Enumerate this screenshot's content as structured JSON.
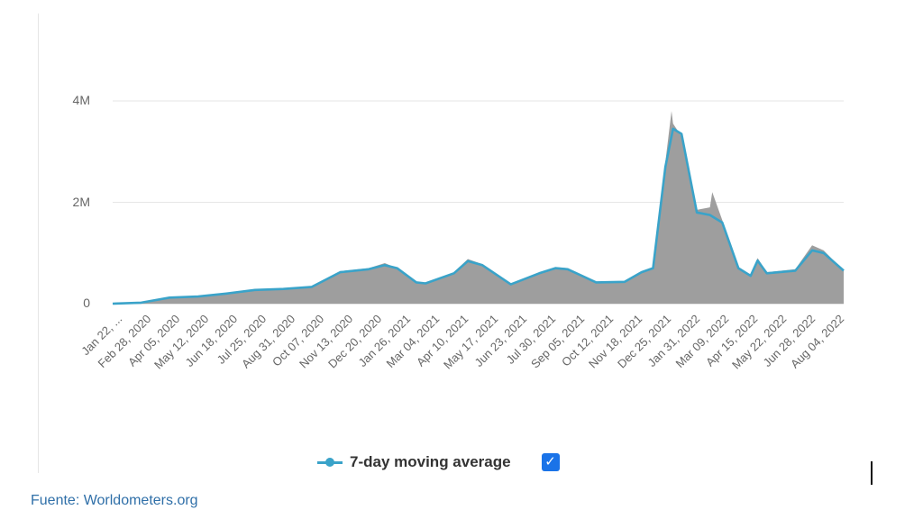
{
  "chart_data": {
    "type": "area",
    "title": "",
    "xlabel": "",
    "ylabel": "",
    "ylim": [
      0,
      4000000
    ],
    "yticks": [
      {
        "value": 0,
        "label": "0"
      },
      {
        "value": 2000000,
        "label": "2M"
      },
      {
        "value": 4000000,
        "label": "4M"
      }
    ],
    "x_tick_labels": [
      "Jan 22, ...",
      "Feb 28, 2020",
      "Apr 05, 2020",
      "May 12, 2020",
      "Jun 18, 2020",
      "Jul 25, 2020",
      "Aug 31, 2020",
      "Oct 07, 2020",
      "Nov 13, 2020",
      "Dec 20, 2020",
      "Jan 26, 2021",
      "Mar 04, 2021",
      "Apr 10, 2021",
      "May 17, 2021",
      "Jun 23, 2021",
      "Jul 30, 2021",
      "Sep 05, 2021",
      "Oct 12, 2021",
      "Nov 18, 2021",
      "Dec 25, 2021",
      "Jan 31, 2022",
      "Mar 09, 2022",
      "Apr 15, 2022",
      "May 22, 2022",
      "Jun 28, 2022",
      "Aug 04, 2022"
    ],
    "grid": true,
    "series": [
      {
        "name": "7-day moving average",
        "color": "#3aa3c9",
        "x": [
          "2020-01-22",
          "2020-02-28",
          "2020-04-05",
          "2020-05-12",
          "2020-06-18",
          "2020-07-25",
          "2020-08-31",
          "2020-10-07",
          "2020-11-13",
          "2020-12-20",
          "2021-01-10",
          "2021-01-26",
          "2021-02-20",
          "2021-03-04",
          "2021-04-10",
          "2021-04-28",
          "2021-05-17",
          "2021-06-23",
          "2021-07-30",
          "2021-08-20",
          "2021-09-05",
          "2021-10-12",
          "2021-11-18",
          "2021-12-10",
          "2021-12-25",
          "2022-01-10",
          "2022-01-20",
          "2022-01-31",
          "2022-02-20",
          "2022-03-09",
          "2022-03-25",
          "2022-04-15",
          "2022-05-01",
          "2022-05-10",
          "2022-05-22",
          "2022-06-28",
          "2022-07-20",
          "2022-08-04",
          "2022-08-30"
        ],
        "values": [
          0,
          20000,
          120000,
          140000,
          200000,
          270000,
          290000,
          330000,
          620000,
          680000,
          760000,
          700000,
          420000,
          400000,
          600000,
          840000,
          760000,
          380000,
          600000,
          700000,
          680000,
          420000,
          430000,
          620000,
          700000,
          2700000,
          3450000,
          3350000,
          1800000,
          1750000,
          1600000,
          700000,
          550000,
          850000,
          600000,
          650000,
          1050000,
          1000000,
          650000
        ]
      },
      {
        "name": "",
        "color": "#9e9e9e",
        "x": [
          "2020-01-22",
          "2020-02-28",
          "2020-04-05",
          "2020-05-12",
          "2020-06-18",
          "2020-07-25",
          "2020-08-31",
          "2020-10-07",
          "2020-11-13",
          "2020-12-20",
          "2021-01-10",
          "2021-01-26",
          "2021-02-20",
          "2021-03-04",
          "2021-04-10",
          "2021-04-28",
          "2021-05-17",
          "2021-06-23",
          "2021-07-30",
          "2021-08-20",
          "2021-09-05",
          "2021-10-12",
          "2021-11-18",
          "2021-12-10",
          "2021-12-25",
          "2022-01-10",
          "2022-01-18",
          "2022-01-20",
          "2022-01-31",
          "2022-02-20",
          "2022-03-09",
          "2022-03-12",
          "2022-03-25",
          "2022-04-15",
          "2022-05-01",
          "2022-05-10",
          "2022-05-22",
          "2022-06-28",
          "2022-07-20",
          "2022-08-04",
          "2022-08-30"
        ],
        "values": [
          0,
          20000,
          120000,
          140000,
          200000,
          270000,
          290000,
          330000,
          640000,
          700000,
          800000,
          700000,
          420000,
          400000,
          620000,
          880000,
          780000,
          380000,
          620000,
          720000,
          700000,
          420000,
          440000,
          640000,
          720000,
          2800000,
          3800000,
          3550000,
          3300000,
          1850000,
          1900000,
          2200000,
          1650000,
          720000,
          560000,
          900000,
          620000,
          680000,
          1150000,
          1050000,
          650000
        ]
      }
    ],
    "legend": {
      "position": "bottom-center",
      "entries": [
        "7-day moving average"
      ]
    }
  },
  "legend_label": "7-day moving average",
  "legend_checked_symbol": "✓",
  "source_text": "Fuente: Worldometers.org"
}
